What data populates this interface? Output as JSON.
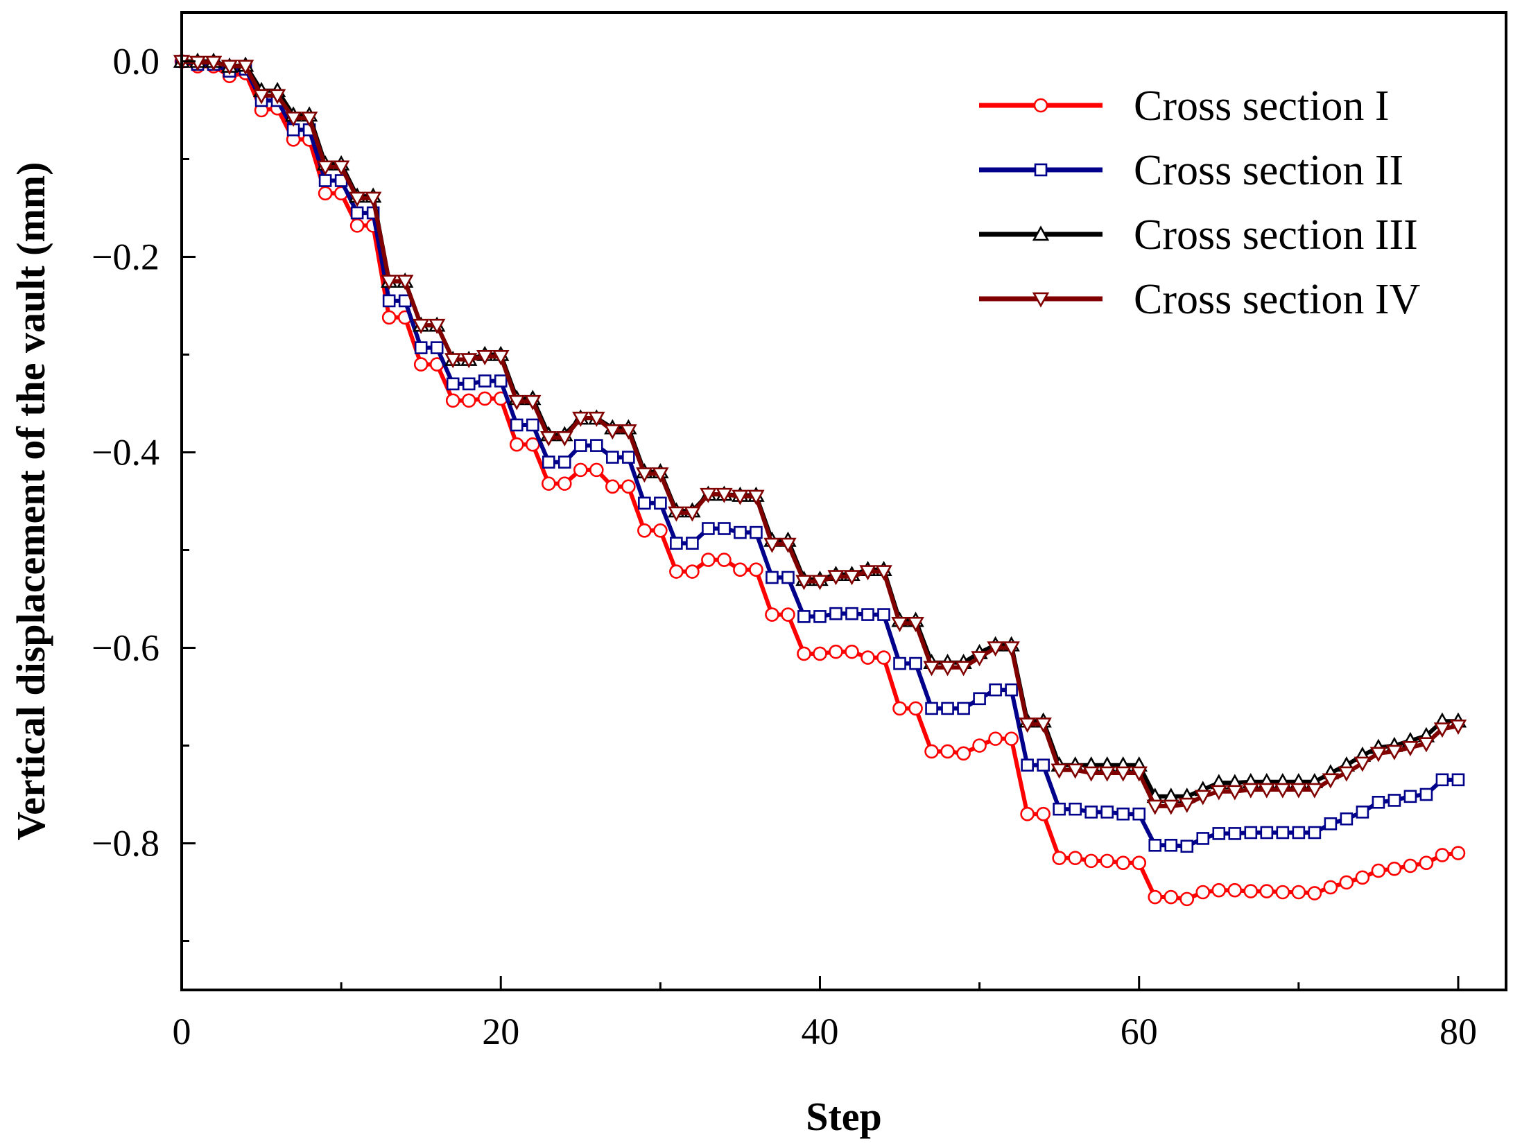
{
  "chart_data": {
    "type": "line",
    "title": "",
    "xlabel": "Step",
    "ylabel": "Vertical displacement of the vault (mm)",
    "xlim": [
      0,
      83
    ],
    "ylim": [
      -0.95,
      0.05
    ],
    "xticks": [
      0,
      20,
      40,
      60,
      80
    ],
    "xtick_labels": [
      "0",
      "20",
      "40",
      "60",
      "80"
    ],
    "yticks": [
      0.0,
      -0.2,
      -0.4,
      -0.6,
      -0.8
    ],
    "ytick_labels": [
      "0.0",
      "−0.2",
      "−0.4",
      "−0.6",
      "−0.8"
    ],
    "legend_position": "top-right",
    "x": [
      0,
      1,
      2,
      3,
      4,
      5,
      6,
      7,
      8,
      9,
      10,
      11,
      12,
      13,
      14,
      15,
      16,
      17,
      18,
      19,
      20,
      21,
      22,
      23,
      24,
      25,
      26,
      27,
      28,
      29,
      30,
      31,
      32,
      33,
      34,
      35,
      36,
      37,
      38,
      39,
      40,
      41,
      42,
      43,
      44,
      45,
      46,
      47,
      48,
      49,
      50,
      51,
      52,
      53,
      54,
      55,
      56,
      57,
      58,
      59,
      60,
      61,
      62,
      63,
      64,
      65,
      66,
      67,
      68,
      69,
      70,
      71,
      72,
      73,
      74,
      75,
      76,
      77,
      78,
      79,
      80
    ],
    "series": [
      {
        "name": "Cross section I",
        "color": "#ff0000",
        "marker": "circle",
        "values": [
          0,
          -0.005,
          -0.005,
          -0.015,
          -0.012,
          -0.05,
          -0.048,
          -0.08,
          -0.08,
          -0.135,
          -0.135,
          -0.168,
          -0.168,
          -0.262,
          -0.262,
          -0.31,
          -0.31,
          -0.347,
          -0.347,
          -0.345,
          -0.345,
          -0.392,
          -0.392,
          -0.432,
          -0.432,
          -0.418,
          -0.418,
          -0.435,
          -0.435,
          -0.48,
          -0.48,
          -0.522,
          -0.522,
          -0.51,
          -0.51,
          -0.52,
          -0.52,
          -0.566,
          -0.566,
          -0.606,
          -0.606,
          -0.604,
          -0.604,
          -0.61,
          -0.61,
          -0.662,
          -0.662,
          -0.706,
          -0.706,
          -0.708,
          -0.7,
          -0.693,
          -0.693,
          -0.77,
          -0.77,
          -0.815,
          -0.815,
          -0.818,
          -0.818,
          -0.82,
          -0.82,
          -0.855,
          -0.855,
          -0.857,
          -0.85,
          -0.848,
          -0.848,
          -0.849,
          -0.849,
          -0.85,
          -0.85,
          -0.851,
          -0.845,
          -0.84,
          -0.835,
          -0.828,
          -0.826,
          -0.823,
          -0.82,
          -0.812,
          -0.81
        ]
      },
      {
        "name": "Cross section II",
        "color": "#00008b",
        "marker": "square",
        "values": [
          0,
          -0.003,
          -0.003,
          -0.01,
          -0.008,
          -0.04,
          -0.04,
          -0.07,
          -0.07,
          -0.122,
          -0.122,
          -0.155,
          -0.155,
          -0.245,
          -0.245,
          -0.293,
          -0.293,
          -0.33,
          -0.33,
          -0.327,
          -0.327,
          -0.372,
          -0.372,
          -0.41,
          -0.41,
          -0.393,
          -0.393,
          -0.405,
          -0.405,
          -0.452,
          -0.452,
          -0.493,
          -0.493,
          -0.478,
          -0.478,
          -0.482,
          -0.482,
          -0.528,
          -0.528,
          -0.568,
          -0.568,
          -0.565,
          -0.565,
          -0.566,
          -0.566,
          -0.616,
          -0.616,
          -0.662,
          -0.662,
          -0.662,
          -0.652,
          -0.643,
          -0.643,
          -0.72,
          -0.72,
          -0.765,
          -0.765,
          -0.768,
          -0.768,
          -0.77,
          -0.77,
          -0.802,
          -0.802,
          -0.803,
          -0.795,
          -0.79,
          -0.79,
          -0.789,
          -0.789,
          -0.789,
          -0.789,
          -0.789,
          -0.78,
          -0.775,
          -0.768,
          -0.758,
          -0.756,
          -0.752,
          -0.75,
          -0.735,
          -0.735
        ]
      },
      {
        "name": "Cross section III",
        "color": "#000000",
        "marker": "triangle-up",
        "values": [
          0,
          0,
          0,
          -0.005,
          -0.004,
          -0.03,
          -0.03,
          -0.055,
          -0.055,
          -0.105,
          -0.105,
          -0.138,
          -0.138,
          -0.225,
          -0.225,
          -0.27,
          -0.27,
          -0.305,
          -0.305,
          -0.3,
          -0.3,
          -0.345,
          -0.345,
          -0.382,
          -0.382,
          -0.365,
          -0.365,
          -0.375,
          -0.375,
          -0.42,
          -0.42,
          -0.46,
          -0.46,
          -0.443,
          -0.443,
          -0.444,
          -0.444,
          -0.49,
          -0.49,
          -0.53,
          -0.53,
          -0.525,
          -0.525,
          -0.52,
          -0.52,
          -0.572,
          -0.572,
          -0.615,
          -0.615,
          -0.615,
          -0.605,
          -0.597,
          -0.597,
          -0.675,
          -0.675,
          -0.72,
          -0.72,
          -0.72,
          -0.72,
          -0.72,
          -0.72,
          -0.752,
          -0.752,
          -0.752,
          -0.745,
          -0.738,
          -0.738,
          -0.737,
          -0.737,
          -0.737,
          -0.737,
          -0.737,
          -0.728,
          -0.72,
          -0.71,
          -0.702,
          -0.7,
          -0.695,
          -0.69,
          -0.675,
          -0.675
        ]
      },
      {
        "name": "Cross section IV",
        "color": "#800000",
        "marker": "triangle-down",
        "values": [
          0,
          -0.001,
          -0.001,
          -0.005,
          -0.005,
          -0.035,
          -0.035,
          -0.058,
          -0.058,
          -0.108,
          -0.108,
          -0.14,
          -0.14,
          -0.225,
          -0.225,
          -0.27,
          -0.27,
          -0.305,
          -0.305,
          -0.302,
          -0.302,
          -0.348,
          -0.348,
          -0.385,
          -0.385,
          -0.365,
          -0.365,
          -0.378,
          -0.378,
          -0.422,
          -0.422,
          -0.462,
          -0.462,
          -0.443,
          -0.443,
          -0.445,
          -0.445,
          -0.494,
          -0.494,
          -0.532,
          -0.532,
          -0.527,
          -0.527,
          -0.522,
          -0.522,
          -0.575,
          -0.575,
          -0.62,
          -0.62,
          -0.62,
          -0.61,
          -0.6,
          -0.6,
          -0.678,
          -0.678,
          -0.725,
          -0.725,
          -0.728,
          -0.728,
          -0.728,
          -0.728,
          -0.762,
          -0.762,
          -0.76,
          -0.752,
          -0.747,
          -0.747,
          -0.745,
          -0.745,
          -0.745,
          -0.745,
          -0.745,
          -0.735,
          -0.728,
          -0.718,
          -0.708,
          -0.706,
          -0.702,
          -0.698,
          -0.683,
          -0.68
        ]
      }
    ]
  }
}
